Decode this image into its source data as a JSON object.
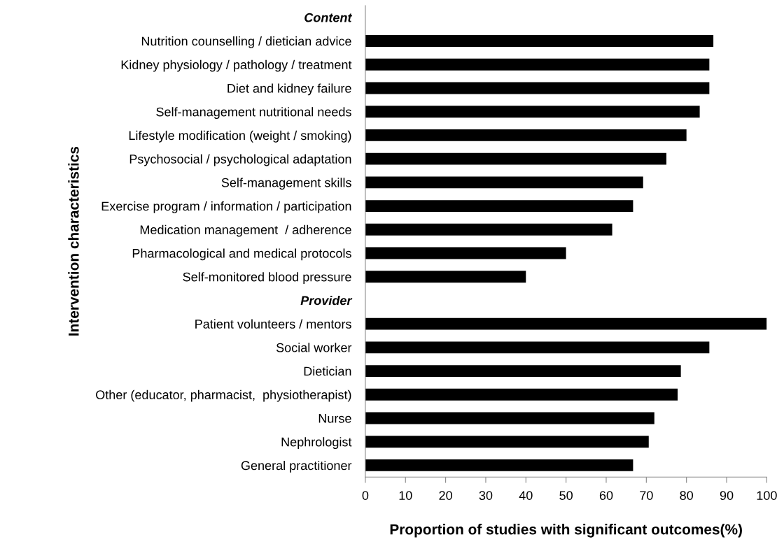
{
  "chart_data": {
    "type": "bar",
    "orientation": "horizontal",
    "xlabel": "Proportion of studies with significant outcomes(%)",
    "ylabel": "Intervention characteristics",
    "categories": [
      "Content",
      "Nutrition counselling / dietician advice",
      "Kidney physiology / pathology / treatment",
      "Diet and kidney failure",
      "Self-management nutritional needs",
      "Lifestyle modification (weight / smoking)",
      "Psychosocial / psychological adaptation",
      "Self-management skills",
      "Exercise program / information / participation",
      "Medication management  / adherence",
      "Pharmacological and medical protocols",
      "Self-monitored blood pressure",
      "Provider",
      "Patient volunteers / mentors",
      "Social worker",
      "Dietician",
      "Other (educator, pharmacist,  physiotherapist)",
      "Nurse",
      "Nephrologist",
      "General practitioner"
    ],
    "values": [
      null,
      86.7,
      85.7,
      85.7,
      83.3,
      80,
      75,
      69.2,
      66.7,
      61.5,
      50,
      40,
      null,
      100,
      85.7,
      78.6,
      77.8,
      72,
      70.6,
      66.7
    ],
    "color": "#000000",
    "xlim": [
      0,
      100
    ],
    "xticks": [
      0,
      10,
      20,
      30,
      40,
      50,
      60,
      70,
      80,
      90,
      100
    ],
    "grid": false,
    "legend": false
  }
}
